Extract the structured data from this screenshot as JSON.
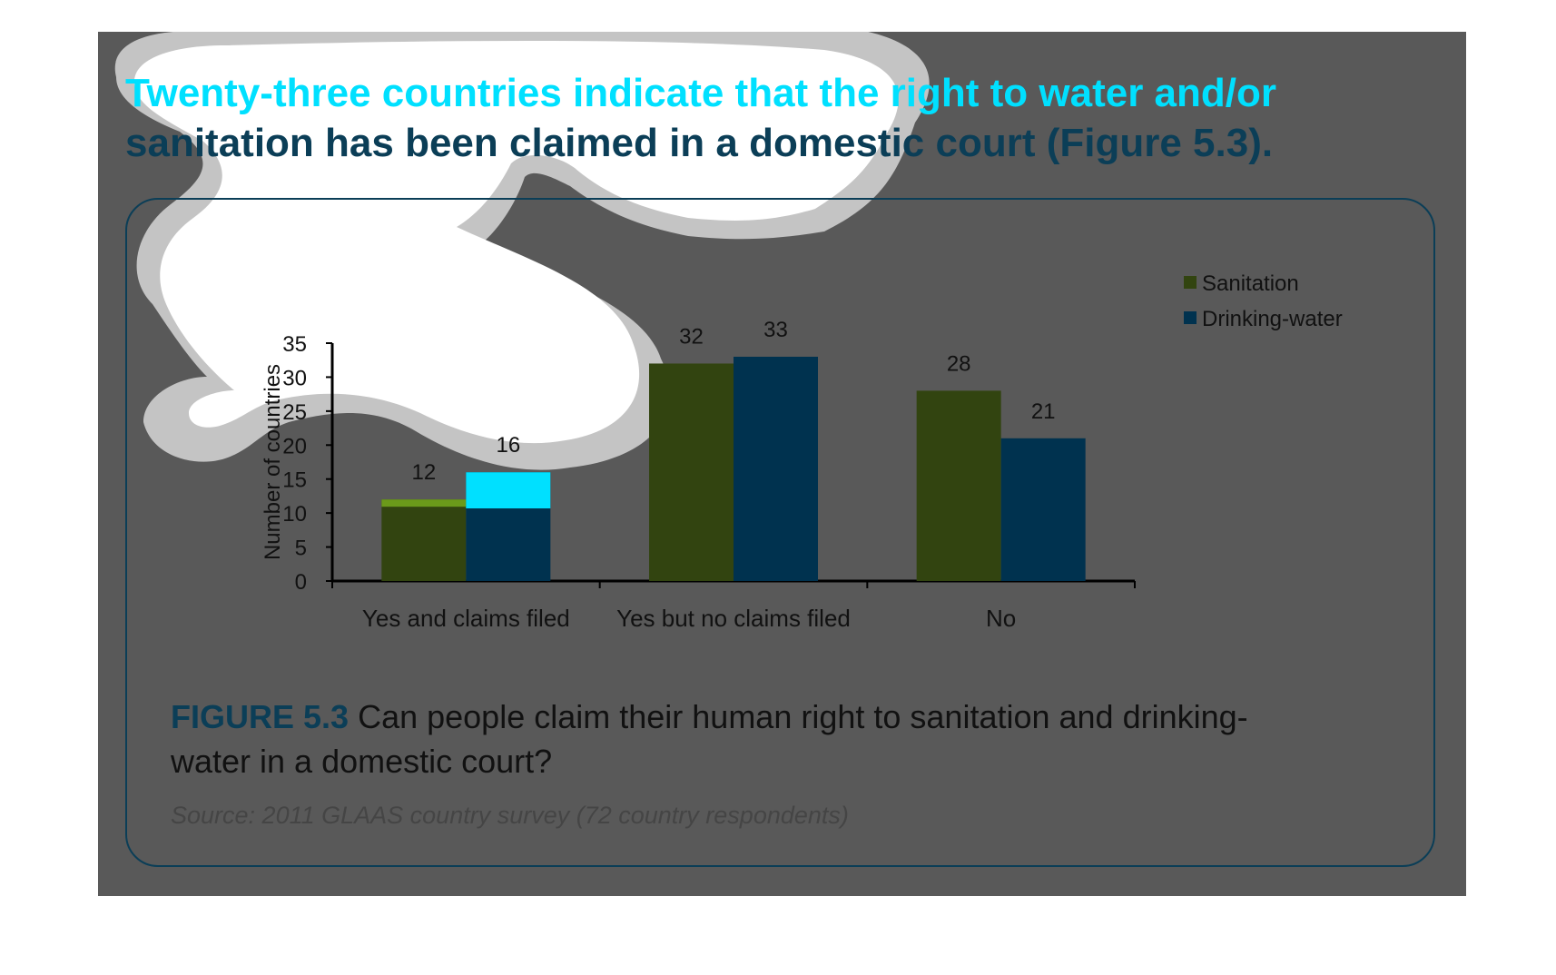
{
  "headline": {
    "line1": "Twenty-three countries indicate that the right to water and/or",
    "line2": "sanitation has been claimed in a domestic court (Figure 5.3)."
  },
  "figure": {
    "number": "FIGURE 5.3",
    "title": "Can people claim their human right to sanitation and drinking-water in a domestic court?",
    "source": "Source: 2011 GLAAS country survey (72 country respondents)"
  },
  "colors": {
    "sanitation": "#324410",
    "drinking_water": "#00324f",
    "highlight_cyan": "#00e0ff",
    "highlight_green": "#6b9a1a",
    "slide_bg": "#595959",
    "accent": "#0b3e57"
  },
  "chart_data": {
    "type": "bar",
    "categories": [
      "Yes and claims filed",
      "Yes but no claims filed",
      "No"
    ],
    "series": [
      {
        "name": "Sanitation",
        "values": [
          12,
          32,
          28
        ]
      },
      {
        "name": "Drinking-water",
        "values": [
          16,
          33,
          21
        ]
      }
    ],
    "ylabel": "Number of countries",
    "xlabel": "",
    "ylim": [
      0,
      35
    ],
    "yticks": [
      0,
      5,
      10,
      15,
      20,
      25,
      30,
      35
    ],
    "legend_position": "top-right",
    "grid": false
  }
}
